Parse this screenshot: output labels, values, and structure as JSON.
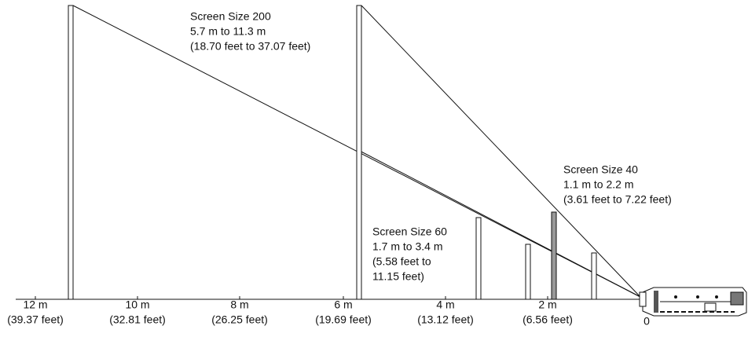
{
  "annotations": [
    {
      "lines": [
        "Screen Size 200",
        "5.7 m to 11.3 m",
        "(18.70 feet to 37.07 feet)"
      ]
    },
    {
      "lines": [
        "Screen Size 40",
        "1.1 m to 2.2 m",
        "(3.61 feet to 7.22 feet)"
      ]
    },
    {
      "lines": [
        "Screen Size 60",
        "1.7 m to 3.4 m",
        "(5.58 feet to",
        "11.15 feet)"
      ]
    }
  ],
  "axis": {
    "ticks": [
      {
        "label": "12 m",
        "sub": "(39.37 feet)"
      },
      {
        "label": "10 m",
        "sub": "(32.81 feet)"
      },
      {
        "label": "8 m",
        "sub": "(26.25 feet)"
      },
      {
        "label": "6 m",
        "sub": "(19.69 feet)"
      },
      {
        "label": "4 m",
        "sub": "(13.12 feet)"
      },
      {
        "label": "2 m",
        "sub": "(6.56 feet)"
      }
    ],
    "origin": "0"
  }
}
